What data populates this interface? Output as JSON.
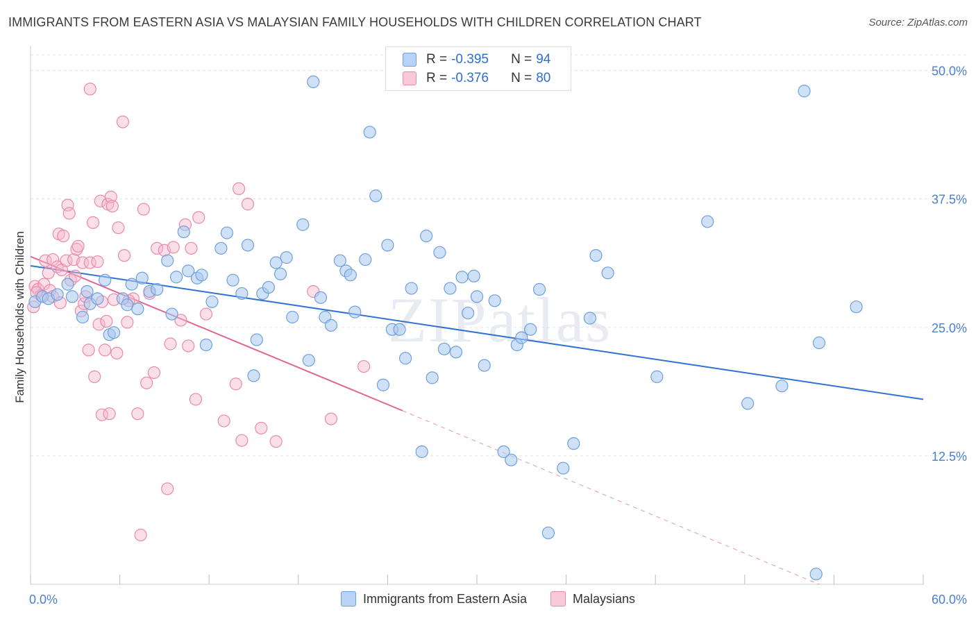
{
  "title": "IMMIGRANTS FROM EASTERN ASIA VS MALAYSIAN FAMILY HOUSEHOLDS WITH CHILDREN CORRELATION CHART",
  "source": "Source: ZipAtlas.com",
  "watermark": "ZIPatlas",
  "colors": {
    "blue_fill": "#a8c8f0",
    "blue_stroke": "#6f9fdc",
    "blue_line": "#2f72d4",
    "pink_fill": "#f6b8cc",
    "pink_stroke": "#e88aa8",
    "pink_line": "#e0658f",
    "axis_text": "#4a7fce",
    "grid": "#e3e3e3"
  },
  "stats": {
    "blue": {
      "r_label": "R = ",
      "r_value": "-0.395",
      "n_label": "N = ",
      "n_value": "94"
    },
    "pink": {
      "r_label": "R = ",
      "r_value": "-0.376",
      "n_label": "N = ",
      "n_value": "80"
    }
  },
  "legend": {
    "blue_label": "Immigrants from Eastern Asia",
    "pink_label": "Malaysians"
  },
  "chart_data": {
    "type": "scatter",
    "title": "IMMIGRANTS FROM EASTERN ASIA VS MALAYSIAN FAMILY HOUSEHOLDS WITH CHILDREN CORRELATION CHART",
    "xlabel": "",
    "ylabel": "Family Households with Children",
    "xlim": [
      0,
      60
    ],
    "ylim": [
      0,
      52
    ],
    "x_tick_labels": [
      "0.0%",
      "60.0%"
    ],
    "y_ticks": [
      12.5,
      25.0,
      37.5,
      50.0
    ],
    "y_tick_labels": [
      "12.5%",
      "25.0%",
      "37.5%",
      "50.0%"
    ],
    "grid": true,
    "legend_position": "bottom",
    "series": [
      {
        "name": "Immigrants from Eastern Asia",
        "color": "#a8c8f0",
        "trend": {
          "x0": 0,
          "y0": 31.0,
          "x1": 60,
          "y1": 18.0
        },
        "points": [
          [
            0.3,
            27.5
          ],
          [
            0.8,
            28.0
          ],
          [
            1.2,
            27.8
          ],
          [
            1.8,
            28.2
          ],
          [
            2.5,
            29.2
          ],
          [
            2.8,
            28.0
          ],
          [
            3.5,
            26.0
          ],
          [
            3.8,
            28.5
          ],
          [
            4.0,
            27.3
          ],
          [
            4.5,
            27.8
          ],
          [
            5.0,
            29.6
          ],
          [
            5.3,
            24.3
          ],
          [
            5.6,
            24.5
          ],
          [
            6.2,
            27.8
          ],
          [
            6.5,
            27.2
          ],
          [
            6.8,
            29.2
          ],
          [
            7.2,
            26.8
          ],
          [
            7.5,
            29.8
          ],
          [
            8.0,
            28.5
          ],
          [
            8.5,
            28.7
          ],
          [
            9.2,
            31.5
          ],
          [
            9.5,
            26.3
          ],
          [
            9.8,
            29.9
          ],
          [
            10.3,
            34.3
          ],
          [
            10.6,
            30.5
          ],
          [
            11.2,
            29.8
          ],
          [
            11.5,
            30.1
          ],
          [
            11.8,
            23.3
          ],
          [
            12.2,
            27.5
          ],
          [
            12.8,
            32.7
          ],
          [
            13.2,
            34.2
          ],
          [
            13.6,
            29.6
          ],
          [
            14.2,
            28.3
          ],
          [
            14.6,
            33.0
          ],
          [
            15.0,
            20.3
          ],
          [
            15.2,
            23.8
          ],
          [
            15.6,
            28.3
          ],
          [
            16.0,
            28.9
          ],
          [
            16.5,
            31.3
          ],
          [
            16.8,
            30.2
          ],
          [
            17.2,
            31.8
          ],
          [
            17.6,
            26.0
          ],
          [
            18.3,
            35.0
          ],
          [
            18.7,
            21.8
          ],
          [
            19.0,
            48.9
          ],
          [
            19.5,
            27.9
          ],
          [
            19.8,
            26.0
          ],
          [
            20.2,
            25.2
          ],
          [
            20.8,
            31.5
          ],
          [
            21.2,
            30.5
          ],
          [
            21.5,
            30.1
          ],
          [
            21.8,
            26.5
          ],
          [
            22.5,
            31.6
          ],
          [
            22.8,
            44.0
          ],
          [
            23.2,
            37.8
          ],
          [
            23.7,
            19.4
          ],
          [
            24.0,
            33.0
          ],
          [
            24.3,
            24.8
          ],
          [
            24.8,
            24.8
          ],
          [
            25.2,
            22.0
          ],
          [
            25.6,
            28.8
          ],
          [
            26.3,
            12.9
          ],
          [
            26.6,
            33.9
          ],
          [
            27.0,
            20.1
          ],
          [
            27.5,
            32.3
          ],
          [
            27.8,
            22.9
          ],
          [
            28.2,
            28.8
          ],
          [
            28.6,
            22.6
          ],
          [
            29.0,
            29.9
          ],
          [
            29.4,
            26.4
          ],
          [
            29.8,
            30.0
          ],
          [
            30.0,
            28.0
          ],
          [
            30.5,
            21.3
          ],
          [
            31.2,
            27.6
          ],
          [
            31.8,
            12.9
          ],
          [
            32.3,
            12.1
          ],
          [
            32.7,
            23.3
          ],
          [
            33.0,
            24.0
          ],
          [
            33.6,
            24.8
          ],
          [
            34.2,
            28.7
          ],
          [
            34.8,
            5.0
          ],
          [
            35.8,
            11.3
          ],
          [
            36.5,
            13.7
          ],
          [
            37.6,
            25.9
          ],
          [
            38.0,
            32.0
          ],
          [
            38.8,
            30.3
          ],
          [
            42.1,
            20.2
          ],
          [
            45.5,
            35.3
          ],
          [
            48.2,
            17.6
          ],
          [
            50.5,
            19.3
          ],
          [
            52.0,
            48.0
          ],
          [
            53.0,
            23.5
          ],
          [
            55.5,
            27.0
          ],
          [
            52.8,
            1.0
          ]
        ]
      },
      {
        "name": "Malaysians",
        "color": "#f6b8cc",
        "trend": {
          "x0": 0,
          "y0": 31.9,
          "x1": 25,
          "y1": 16.9
        },
        "trend_dashed": {
          "x0": 25,
          "y0": 16.9,
          "x1": 53,
          "y1": 0
        },
        "points": [
          [
            0.2,
            27.0
          ],
          [
            0.3,
            29.0
          ],
          [
            0.5,
            28.7
          ],
          [
            0.7,
            28.1
          ],
          [
            0.9,
            29.2
          ],
          [
            1.0,
            31.5
          ],
          [
            1.2,
            30.3
          ],
          [
            1.3,
            28.6
          ],
          [
            1.5,
            31.6
          ],
          [
            1.8,
            30.9
          ],
          [
            1.9,
            34.1
          ],
          [
            2.1,
            30.6
          ],
          [
            2.2,
            33.9
          ],
          [
            2.4,
            31.5
          ],
          [
            2.5,
            36.9
          ],
          [
            2.6,
            36.1
          ],
          [
            2.7,
            29.6
          ],
          [
            2.9,
            31.6
          ],
          [
            3.0,
            30.0
          ],
          [
            3.1,
            32.6
          ],
          [
            3.2,
            32.9
          ],
          [
            3.4,
            26.6
          ],
          [
            3.5,
            31.3
          ],
          [
            3.6,
            27.3
          ],
          [
            3.7,
            28.0
          ],
          [
            3.9,
            22.8
          ],
          [
            4.0,
            31.3
          ],
          [
            4.2,
            35.2
          ],
          [
            4.3,
            20.2
          ],
          [
            4.5,
            31.4
          ],
          [
            4.6,
            25.3
          ],
          [
            4.7,
            37.3
          ],
          [
            4.8,
            16.5
          ],
          [
            5.0,
            22.8
          ],
          [
            5.1,
            25.6
          ],
          [
            5.2,
            37.0
          ],
          [
            5.3,
            16.6
          ],
          [
            5.4,
            37.7
          ],
          [
            5.5,
            36.8
          ],
          [
            5.6,
            27.7
          ],
          [
            5.8,
            22.5
          ],
          [
            5.9,
            34.7
          ],
          [
            6.2,
            45.0
          ],
          [
            6.3,
            32.0
          ],
          [
            6.5,
            25.5
          ],
          [
            6.9,
            27.8
          ],
          [
            7.2,
            16.6
          ],
          [
            7.4,
            4.8
          ],
          [
            7.6,
            36.5
          ],
          [
            7.8,
            19.6
          ],
          [
            8.0,
            28.3
          ],
          [
            8.3,
            20.6
          ],
          [
            8.5,
            32.7
          ],
          [
            9.0,
            32.5
          ],
          [
            9.2,
            9.3
          ],
          [
            9.4,
            23.4
          ],
          [
            9.6,
            32.8
          ],
          [
            10.1,
            25.7
          ],
          [
            10.4,
            35.0
          ],
          [
            10.6,
            23.2
          ],
          [
            10.8,
            32.7
          ],
          [
            11.1,
            18.0
          ],
          [
            11.3,
            35.7
          ],
          [
            11.8,
            26.3
          ],
          [
            13.0,
            15.9
          ],
          [
            13.8,
            19.5
          ],
          [
            14.0,
            38.5
          ],
          [
            14.2,
            14.0
          ],
          [
            14.6,
            37.0
          ],
          [
            15.5,
            15.2
          ],
          [
            16.5,
            13.9
          ],
          [
            19.0,
            28.5
          ],
          [
            20.2,
            16.1
          ],
          [
            22.4,
            21.2
          ],
          [
            4.0,
            48.2
          ],
          [
            4.8,
            27.5
          ],
          [
            6.6,
            27.6
          ],
          [
            1.5,
            28.0
          ],
          [
            2.0,
            27.4
          ],
          [
            0.4,
            28.4
          ]
        ]
      }
    ]
  }
}
